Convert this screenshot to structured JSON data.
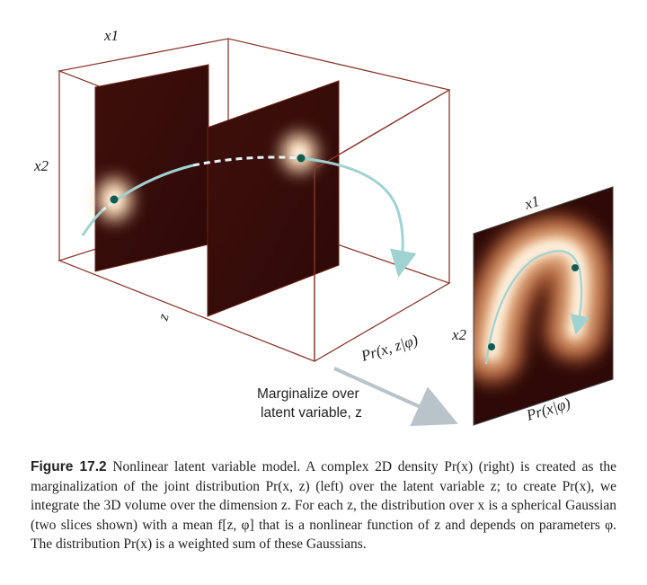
{
  "figure": {
    "left_panel": {
      "axis_x1": "x1",
      "axis_x2": "x2",
      "axis_z": "z",
      "density_label": "Pr(x, z|φ)"
    },
    "right_panel": {
      "axis_x1": "x1",
      "axis_x2": "x2",
      "density_label": "Pr(x|φ)"
    },
    "arrow_text_line1": "Marginalize over",
    "arrow_text_line2": "latent variable, z",
    "colors": {
      "slice_dark": "#3a0d0a",
      "density_peak": "#fff3e3",
      "curve": "#9fd3d2",
      "dot": "#0f5c52",
      "box_edge": "#8b3a2e",
      "arrow": "#b9c3ca"
    }
  },
  "caption": {
    "label": "Figure 17.2",
    "text": "Nonlinear latent variable model. A complex 2D density Pr(x) (right) is created as the marginalization of the joint distribution Pr(x, z) (left) over the latent variable z; to create Pr(x), we integrate the 3D volume over the dimension z. For each z, the distribution over x is a spherical Gaussian (two slices shown) with a mean f[z, φ] that is a nonlinear function of z and depends on parameters φ. The distribution Pr(x) is a weighted sum of these Gaussians."
  }
}
